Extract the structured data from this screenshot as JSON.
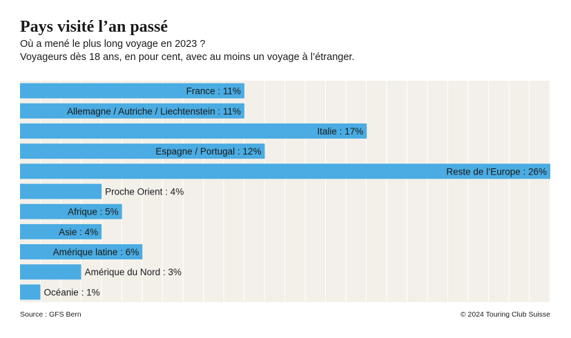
{
  "header": {
    "title": "Pays visité l’an passé",
    "subtitle_line1": "Où a mené le plus long voyage en 2023 ?",
    "subtitle_line2": "Voyageurs dès 18 ans, en pour cent, avec au moins un voyage à l’étranger."
  },
  "footer": {
    "source": "Source : GFS Bern",
    "copyright": "© 2024 Touring Club Suisse"
  },
  "colors": {
    "bar": "#4aace2",
    "background": "#f3f0ea",
    "grid": "#ffffff",
    "text": "#1a1a1a"
  },
  "chart_data": {
    "type": "bar",
    "orientation": "horizontal",
    "title": "Pays visité l’an passé",
    "xlabel": "",
    "ylabel": "",
    "unit": "%",
    "xlim": [
      0,
      26
    ],
    "grid": true,
    "categories": [
      "France",
      "Allemagne / Autriche / Liechtenstein",
      "Italie",
      "Espagne / Portugal",
      "Reste de l’Europe",
      "Proche Orient",
      "Afrique",
      "Asie",
      "Amérique latine",
      "Amérique du Nord",
      "Océanie"
    ],
    "values": [
      11,
      11,
      17,
      12,
      26,
      4,
      5,
      4,
      6,
      3,
      1
    ],
    "labels": [
      "France : 11%",
      "Allemagne / Autriche / Liechtenstein : 11%",
      "Italie : 17%",
      "Espagne / Portugal : 12%",
      "Reste de l’Europe : 26%",
      "Proche Orient : 4%",
      "Afrique : 5%",
      "Asie : 4%",
      "Amérique latine : 6%",
      "Amérique du Nord : 3%",
      "Océanie : 1%"
    ]
  }
}
